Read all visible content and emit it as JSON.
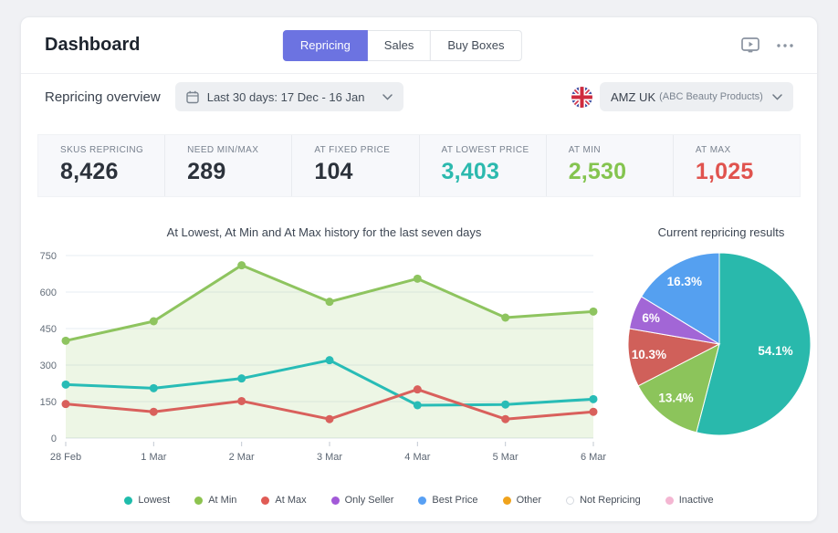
{
  "header": {
    "title": "Dashboard",
    "tabs": [
      {
        "label": "Repricing",
        "active": true
      },
      {
        "label": "Sales",
        "active": false
      },
      {
        "label": "Buy Boxes",
        "active": false
      }
    ],
    "accent_color": "#6c73e1"
  },
  "filters": {
    "section_label": "Repricing overview",
    "date_range": "Last 30 days: 17 Dec - 16 Jan",
    "marketplace_flag": "uk-flag",
    "account_name": "AMZ UK",
    "account_detail": "(ABC Beauty Products)"
  },
  "stats": [
    {
      "label": "SKUS REPRICING",
      "value": "8,426",
      "color": "#2c323b"
    },
    {
      "label": "NEED MIN/MAX",
      "value": "289",
      "color": "#2c323b"
    },
    {
      "label": "AT FIXED PRICE",
      "value": "104",
      "color": "#2c323b"
    },
    {
      "label": "AT LOWEST PRICE",
      "value": "3,403",
      "color": "#2cb9ae"
    },
    {
      "label": "AT MIN",
      "value": "2,530",
      "color": "#84c44f"
    },
    {
      "label": "AT MAX",
      "value": "1,025",
      "color": "#e0534e"
    }
  ],
  "chart_data": [
    {
      "type": "line",
      "title": "At Lowest, At Min and At Max history for the last seven days",
      "x": [
        "28 Feb",
        "1 Mar",
        "2 Mar",
        "3 Mar",
        "4 Mar",
        "5 Mar",
        "6 Mar"
      ],
      "series": [
        {
          "name": "At Min",
          "color": "#8ec45f",
          "area": true,
          "area_color": "rgba(142,196,95,0.16)",
          "values": [
            400,
            480,
            710,
            560,
            655,
            495,
            520
          ]
        },
        {
          "name": "Lowest",
          "color": "#28bcb6",
          "values": [
            220,
            205,
            245,
            320,
            135,
            138,
            160
          ]
        },
        {
          "name": "At Max",
          "color": "#d9605c",
          "values": [
            140,
            108,
            152,
            78,
            200,
            78,
            108
          ]
        }
      ],
      "ylim": [
        0,
        750
      ],
      "yticks": [
        0,
        150,
        300,
        450,
        600,
        750
      ],
      "grid": true,
      "legend_position": "bottom"
    },
    {
      "type": "pie",
      "title": "Current repricing results",
      "slices": [
        {
          "label": "54.1%",
          "value": 54.1,
          "color": "#29b9ac",
          "label_r": 0.62
        },
        {
          "label": "13.4%",
          "value": 13.4,
          "color": "#8cc45b",
          "label_r": 0.76
        },
        {
          "label": "10.3%",
          "value": 10.3,
          "color": "#d0605a",
          "label_r": 0.78
        },
        {
          "label": "6%",
          "value": 6.0,
          "color": "#a266d6",
          "label_r": 0.8
        },
        {
          "label": "16.3%",
          "value": 16.3,
          "color": "#55a0f0",
          "label_r": 0.78
        }
      ],
      "start_angle_deg": 0,
      "direction": "clockwise"
    }
  ],
  "legend": [
    {
      "label": "Lowest",
      "color": "#1fbcab"
    },
    {
      "label": "At Min",
      "color": "#8dc34f"
    },
    {
      "label": "At Max",
      "color": "#e05b55"
    },
    {
      "label": "Only Seller",
      "color": "#a259d8"
    },
    {
      "label": "Best Price",
      "color": "#58a0f4"
    },
    {
      "label": "Other",
      "color": "#f0a31c"
    },
    {
      "label": "Not Repricing",
      "color": "#ffffff",
      "border": "#d5d9df"
    },
    {
      "label": "Inactive",
      "color": "#f4b6d2"
    }
  ]
}
